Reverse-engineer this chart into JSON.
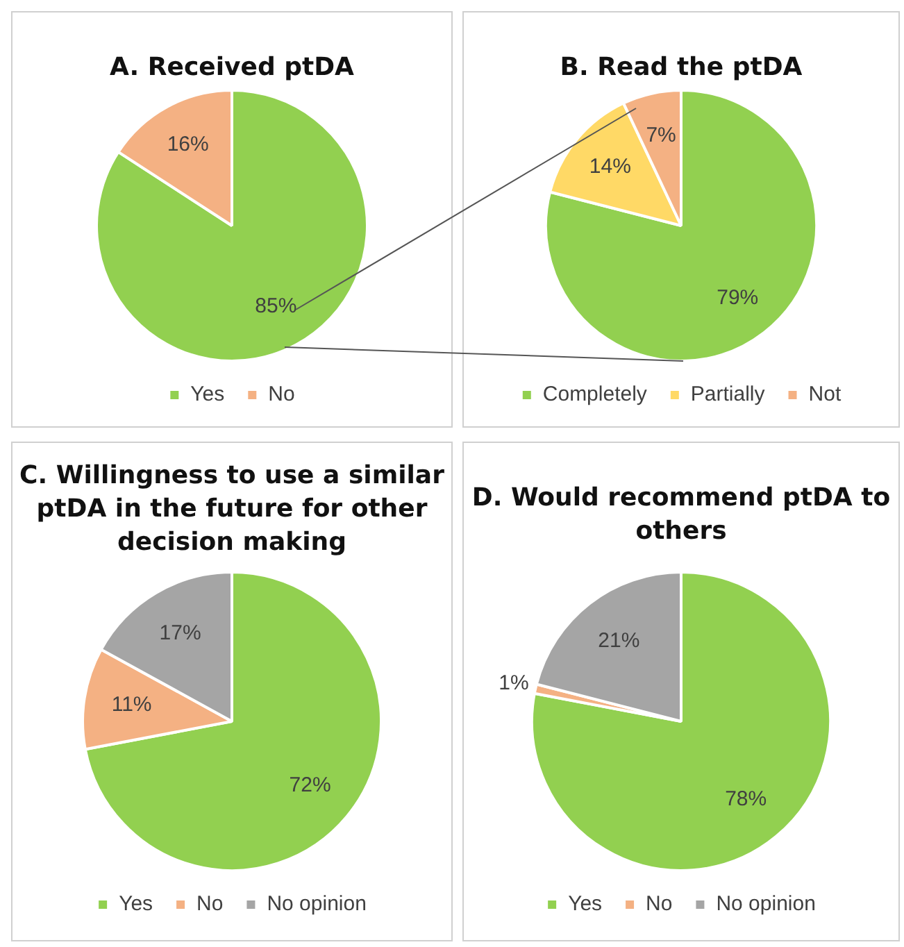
{
  "chart_data": [
    {
      "type": "pie",
      "title": "A. Received ptDA",
      "categories": [
        "Yes",
        "No"
      ],
      "values": [
        85,
        16
      ],
      "value_labels": [
        "85%",
        "16%"
      ],
      "colors": [
        "#92d050",
        "#f4b183"
      ],
      "legend": "bottom"
    },
    {
      "type": "pie",
      "title": "B. Read the ptDA",
      "categories": [
        "Completely",
        "Partially",
        "Not"
      ],
      "values": [
        79,
        14,
        7
      ],
      "value_labels": [
        "79%",
        "14%",
        "7%"
      ],
      "colors": [
        "#92d050",
        "#ffd966",
        "#f4b183"
      ],
      "legend": "bottom"
    },
    {
      "type": "pie",
      "title": "C. Willingness to use a similar ptDA in the future for other decision making",
      "categories": [
        "Yes",
        "No",
        "No opinion"
      ],
      "values": [
        72,
        11,
        17
      ],
      "value_labels": [
        "72%",
        "11%",
        "17%"
      ],
      "colors": [
        "#92d050",
        "#f4b183",
        "#a5a5a5"
      ],
      "legend": "bottom"
    },
    {
      "type": "pie",
      "title": "D. Would recommend ptDA to others",
      "categories": [
        "Yes",
        "No",
        "No opinion"
      ],
      "values": [
        78,
        1,
        21
      ],
      "value_labels": [
        "78%",
        "1%",
        "21%"
      ],
      "colors": [
        "#92d050",
        "#f4b183",
        "#a5a5a5"
      ],
      "legend": "bottom"
    }
  ]
}
